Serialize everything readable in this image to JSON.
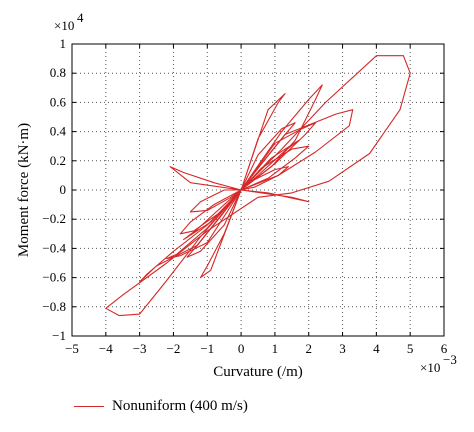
{
  "chart_data": {
    "type": "line",
    "title": "",
    "xlabel": "Curvature (/m)",
    "ylabel": "Moment force (kN·m)",
    "x_multiplier": "×10",
    "x_multiplier_exp": "−3",
    "y_multiplier": "×10",
    "y_multiplier_exp": "4",
    "xlim": [
      -5,
      6
    ],
    "ylim": [
      -1,
      1
    ],
    "x_ticks": [
      -5,
      -4,
      -3,
      -2,
      -1,
      0,
      1,
      2,
      3,
      4,
      5,
      6
    ],
    "x_tick_labels": [
      "−5",
      "−4",
      "−3",
      "−2",
      "−1",
      "0",
      "1",
      "2",
      "3",
      "4",
      "5",
      "6"
    ],
    "y_ticks": [
      1,
      0.8,
      0.6,
      0.4,
      0.2,
      0,
      -0.2,
      -0.4,
      -0.6,
      -0.8,
      -1
    ],
    "y_tick_labels": [
      "1",
      "0.8",
      "0.6",
      "0.4",
      "0.2",
      "0",
      "−0.2",
      "−0.4",
      "−0.6",
      "−0.8",
      "−1"
    ],
    "grid": true,
    "grid_style": "dotted",
    "legend_position": "bottom-left",
    "series": [
      {
        "name": "Nonuniform (400 m/s)",
        "color": "#d62828",
        "loops": [
          [
            [
              0,
              0
            ],
            [
              1.2,
              0.28
            ],
            [
              2.5,
              0.6
            ],
            [
              4.0,
              0.92
            ],
            [
              4.8,
              0.92
            ],
            [
              5.0,
              0.8
            ],
            [
              4.7,
              0.55
            ],
            [
              3.8,
              0.25
            ],
            [
              2.6,
              0.06
            ],
            [
              1.5,
              -0.02
            ],
            [
              0.5,
              -0.05
            ],
            [
              -1.0,
              -0.28
            ],
            [
              -2.2,
              -0.5
            ],
            [
              -3.5,
              -0.72
            ],
            [
              -4.0,
              -0.81
            ],
            [
              -3.6,
              -0.86
            ],
            [
              -3.0,
              -0.85
            ],
            [
              -2.2,
              -0.62
            ],
            [
              -1.2,
              -0.32
            ],
            [
              0,
              0
            ]
          ],
          [
            [
              0,
              0
            ],
            [
              1.2,
              0.4
            ],
            [
              2.0,
              0.62
            ],
            [
              2.4,
              0.72
            ],
            [
              2.2,
              0.62
            ],
            [
              1.6,
              0.34
            ],
            [
              0.9,
              0.16
            ],
            [
              0,
              0
            ]
          ],
          [
            [
              0,
              0
            ],
            [
              0.4,
              0.12
            ],
            [
              1.3,
              0.38
            ],
            [
              2.8,
              0.52
            ],
            [
              3.3,
              0.55
            ],
            [
              3.2,
              0.44
            ],
            [
              2.2,
              0.26
            ],
            [
              1.1,
              0.1
            ],
            [
              0,
              0
            ]
          ],
          [
            [
              0,
              0
            ],
            [
              -1.3,
              -0.38
            ],
            [
              -2.5,
              -0.52
            ],
            [
              -3.0,
              -0.63
            ],
            [
              -2.8,
              -0.58
            ],
            [
              -2.0,
              -0.42
            ],
            [
              -1.0,
              -0.24
            ],
            [
              0,
              0
            ]
          ],
          [
            [
              0,
              0
            ],
            [
              -1.0,
              -0.36
            ],
            [
              -1.8,
              -0.45
            ],
            [
              -2.2,
              -0.47
            ],
            [
              -1.9,
              -0.44
            ],
            [
              -1.0,
              -0.26
            ],
            [
              0,
              0
            ]
          ],
          [
            [
              0,
              0
            ],
            [
              1.0,
              0.32
            ],
            [
              1.8,
              0.42
            ],
            [
              2.2,
              0.46
            ],
            [
              1.9,
              0.38
            ],
            [
              1.0,
              0.18
            ],
            [
              0,
              0
            ]
          ],
          [
            [
              0,
              0
            ],
            [
              0.6,
              0.15
            ],
            [
              1.5,
              0.28
            ],
            [
              2.0,
              0.3
            ],
            [
              1.6,
              0.22
            ],
            [
              0.8,
              0.08
            ],
            [
              0,
              0
            ]
          ],
          [
            [
              0,
              0
            ],
            [
              -0.6,
              -0.15
            ],
            [
              -1.4,
              -0.28
            ],
            [
              -1.8,
              -0.3
            ],
            [
              -1.5,
              -0.22
            ],
            [
              -0.8,
              -0.1
            ],
            [
              0,
              0
            ]
          ],
          [
            [
              0,
              0
            ],
            [
              -0.3,
              -0.05
            ],
            [
              -1.0,
              -0.14
            ],
            [
              -1.5,
              -0.15
            ],
            [
              -1.2,
              -0.08
            ],
            [
              -0.5,
              0.0
            ],
            [
              0,
              0
            ]
          ],
          [
            [
              0,
              0
            ],
            [
              0.3,
              0.06
            ],
            [
              1.0,
              0.14
            ],
            [
              1.4,
              0.16
            ],
            [
              1.1,
              0.1
            ],
            [
              0.4,
              0.02
            ],
            [
              0,
              0
            ]
          ],
          [
            [
              0,
              0
            ],
            [
              0.8,
              0.55
            ],
            [
              1.3,
              0.66
            ],
            [
              1.1,
              0.6
            ],
            [
              0.5,
              0.35
            ],
            [
              0,
              0
            ]
          ],
          [
            [
              0,
              0
            ],
            [
              -0.9,
              -0.55
            ],
            [
              -1.2,
              -0.6
            ],
            [
              -1.0,
              -0.52
            ],
            [
              -0.5,
              -0.3
            ],
            [
              0,
              0
            ]
          ],
          [
            [
              0,
              0
            ],
            [
              -1.5,
              0.05
            ],
            [
              -2.1,
              0.16
            ],
            [
              -1.7,
              0.12
            ],
            [
              -0.8,
              0.05
            ],
            [
              0,
              0
            ]
          ],
          [
            [
              0,
              0
            ],
            [
              1.5,
              -0.05
            ],
            [
              2.0,
              -0.08
            ],
            [
              1.6,
              -0.06
            ],
            [
              0.8,
              -0.02
            ],
            [
              0,
              0
            ]
          ],
          [
            [
              0,
              0
            ],
            [
              0.5,
              0.24
            ],
            [
              1.2,
              0.42
            ],
            [
              1.6,
              0.46
            ],
            [
              1.3,
              0.38
            ],
            [
              0.6,
              0.18
            ],
            [
              0,
              0
            ]
          ],
          [
            [
              0,
              0
            ],
            [
              -0.5,
              -0.24
            ],
            [
              -1.2,
              -0.42
            ],
            [
              -1.6,
              -0.46
            ],
            [
              -1.3,
              -0.38
            ],
            [
              -0.6,
              -0.18
            ],
            [
              0,
              0
            ]
          ],
          [
            [
              0,
              0
            ],
            [
              0.9,
              0.22
            ],
            [
              1.7,
              0.34
            ],
            [
              1.3,
              0.27
            ],
            [
              0.5,
              0.1
            ],
            [
              0,
              0
            ]
          ],
          [
            [
              0,
              0
            ],
            [
              -0.9,
              -0.22
            ],
            [
              -1.7,
              -0.34
            ],
            [
              -1.3,
              -0.27
            ],
            [
              -0.5,
              -0.1
            ],
            [
              0,
              0
            ]
          ]
        ]
      }
    ]
  },
  "legend": {
    "label": "Nonuniform (400 m/s)",
    "color": "#d62828"
  }
}
